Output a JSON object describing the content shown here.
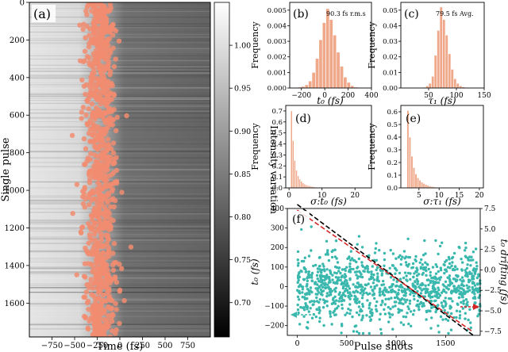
{
  "colors": {
    "marker": "#f28c70",
    "bar": "#f0a88a",
    "bar_edge": "#e08868",
    "scatter": "#3ab8ae",
    "trend": "#d62728",
    "fit": "#000000"
  },
  "chart_data": [
    {
      "panel": "(a)",
      "type": "heatmap",
      "xlabel": "Time (fs)",
      "ylabel": "Single pulse",
      "xlim": [
        -1000,
        1000
      ],
      "ylim": [
        0,
        1780
      ],
      "y_inverted": true,
      "xticks": [
        -750,
        -500,
        -250,
        0,
        250,
        500,
        750
      ],
      "yticks": [
        0,
        200,
        400,
        600,
        800,
        1000,
        1200,
        1400,
        1600
      ],
      "colormap": "gray",
      "colorbar": {
        "label": "Intensity variation",
        "range": [
          0.66,
          1.05
        ],
        "ticks": [
          "1.00",
          "0.95",
          "0.90",
          "0.85",
          "0.80",
          "0.75",
          "0.70"
        ],
        "tick_values": [
          1.0,
          0.95,
          0.9,
          0.85,
          0.8,
          0.75,
          0.7
        ]
      },
      "transition_region_fs": [
        -450,
        50
      ],
      "markers": {
        "description_series": "arrival time markers",
        "x_mean": -220,
        "x_spread_rms": 90
      }
    },
    {
      "panel": "(b)",
      "type": "bar",
      "annotation": "90.3 fs r.m.s",
      "xlabel": "t₀ (fs)",
      "ylabel": "Frequency",
      "xlim": [
        -300,
        400
      ],
      "ylim": [
        0,
        0.0055
      ],
      "xticks": [
        -200,
        0,
        200,
        400
      ],
      "yticks": [
        "0.000",
        "0.001",
        "0.002",
        "0.003",
        "0.004",
        "0.005"
      ],
      "ytick_values": [
        0.0,
        0.001,
        0.002,
        0.003,
        0.004,
        0.005
      ],
      "bin_edges": [
        -260,
        -230,
        -200,
        -170,
        -140,
        -110,
        -80,
        -50,
        -20,
        10,
        40,
        70,
        100,
        130,
        160,
        190,
        220,
        250,
        280,
        310
      ],
      "values": [
        3e-05,
        6e-05,
        0.0001,
        0.00021,
        0.00045,
        0.001,
        0.0019,
        0.0031,
        0.0042,
        0.0051,
        0.0044,
        0.0034,
        0.0023,
        0.0014,
        0.0007,
        0.00036,
        0.00015,
        6e-05,
        3e-05
      ]
    },
    {
      "panel": "(c)",
      "type": "bar",
      "annotation": "79.5 fs Avg.",
      "xlabel": "τ₁ (fs)",
      "ylabel": "Frequency",
      "xlim": [
        0,
        150
      ],
      "ylim": [
        0,
        0.055
      ],
      "xticks": [
        50,
        100,
        150
      ],
      "yticks": [
        "0.00",
        "0.01",
        "0.02",
        "0.03",
        "0.04",
        "0.05"
      ],
      "ytick_values": [
        0.0,
        0.01,
        0.02,
        0.03,
        0.04,
        0.05
      ],
      "bin_edges": [
        40,
        45,
        50,
        55,
        60,
        65,
        70,
        75,
        80,
        85,
        90,
        95,
        100,
        105,
        110,
        115,
        120
      ],
      "values": [
        0.0005,
        0.0014,
        0.003,
        0.0075,
        0.021,
        0.037,
        0.052,
        0.044,
        0.034,
        0.022,
        0.012,
        0.006,
        0.003,
        0.0014,
        0.0007,
        0.0003
      ]
    },
    {
      "panel": "(d)",
      "type": "bar",
      "xlabel": "σ:t₀ (fs)",
      "ylabel": "Frequency",
      "xlim": [
        -1,
        25
      ],
      "ylim": [
        0,
        0.75
      ],
      "xticks": [
        0,
        10,
        20
      ],
      "yticks": [
        "0.0",
        "0.1",
        "0.2",
        "0.3",
        "0.4",
        "0.5",
        "0.6",
        "0.7"
      ],
      "ytick_values": [
        0.0,
        0.1,
        0.2,
        0.3,
        0.4,
        0.5,
        0.6,
        0.7
      ],
      "bin_edges": [
        0.5,
        1.0,
        1.5,
        2.0,
        2.5,
        3.0,
        3.5,
        4.0,
        4.5,
        5.0,
        5.5,
        6.0,
        6.5,
        7.0,
        7.5,
        8.0,
        8.5,
        9.0,
        9.5,
        10.0,
        10.5,
        11.0
      ],
      "values": [
        0.7,
        0.43,
        0.25,
        0.16,
        0.11,
        0.08,
        0.06,
        0.045,
        0.035,
        0.028,
        0.022,
        0.018,
        0.014,
        0.011,
        0.009,
        0.007,
        0.006,
        0.005,
        0.004,
        0.003,
        0.002
      ]
    },
    {
      "panel": "(e)",
      "type": "bar",
      "xlabel": "σ:τ₁ (fs)",
      "ylabel": "Frequency",
      "xlim": [
        0.5,
        21
      ],
      "ylim": [
        0,
        0.65
      ],
      "xticks": [
        5,
        10,
        15,
        20
      ],
      "yticks": [
        "0.0",
        "0.1",
        "0.2",
        "0.3",
        "0.4",
        "0.5",
        "0.6"
      ],
      "ytick_values": [
        0.0,
        0.1,
        0.2,
        0.3,
        0.4,
        0.5,
        0.6
      ],
      "bin_edges": [
        2.0,
        2.5,
        3.0,
        3.5,
        4.0,
        4.5,
        5.0,
        5.5,
        6.0,
        6.5,
        7.0,
        7.5,
        8.0,
        8.5,
        9.0,
        9.5,
        10.0,
        10.5
      ],
      "values": [
        0.61,
        0.4,
        0.25,
        0.16,
        0.11,
        0.08,
        0.06,
        0.045,
        0.035,
        0.027,
        0.02,
        0.015,
        0.011,
        0.008,
        0.006,
        0.004,
        0.003
      ]
    },
    {
      "panel": "(f)",
      "type": "scatter",
      "xlabel": "Pulse shots",
      "ylabel": "t₀ (fs)",
      "ylabel_right": "t₀ drifting (fs)",
      "xlim": [
        -100,
        1850
      ],
      "ylim": [
        -250,
        400
      ],
      "ylim_right": [
        -8,
        7.5
      ],
      "xticks": [
        0,
        500,
        1000,
        1500
      ],
      "yticks": [
        -200,
        -100,
        0,
        100,
        200,
        300,
        400
      ],
      "yticks_right": [
        "7.5",
        "5.0",
        "2.5",
        "0.0",
        "-2.5",
        "-5.0",
        "-7.5"
      ],
      "ytick_values_right": [
        7.5,
        5.0,
        2.5,
        0.0,
        -2.5,
        -5.0,
        -7.5
      ],
      "n_points": 1780,
      "scatter_mean": 0,
      "scatter_sd": 90,
      "fit_line": {
        "x": [
          0,
          1780
        ],
        "y": [
          8,
          -8
        ]
      },
      "drift_line": {
        "x": [
          0,
          1780
        ],
        "y": [
          7.3,
          -7.6
        ]
      }
    }
  ]
}
